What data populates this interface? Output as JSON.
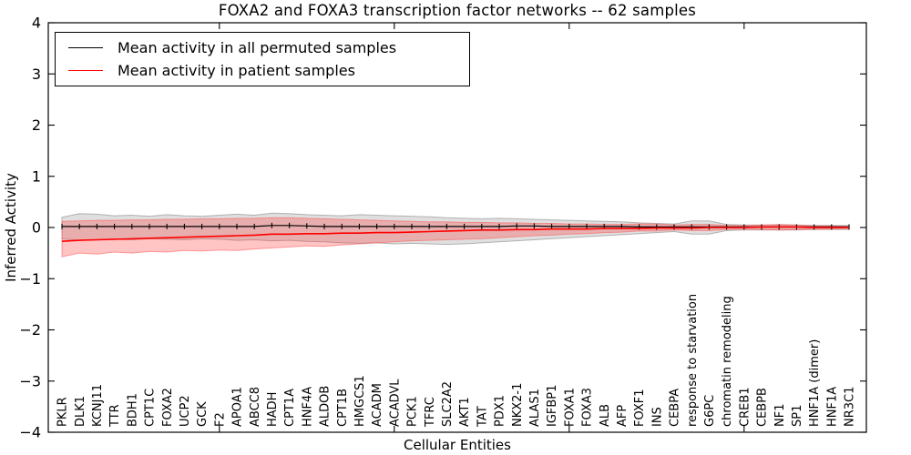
{
  "title": "FOXA2 and FOXA3 transcription factor networks -- 62 samples",
  "legend": {
    "entries": [
      {
        "label": "Mean activity in all permuted samples",
        "color": "#000000"
      },
      {
        "label": "Mean activity in patient samples",
        "color": "#ff0000"
      }
    ]
  },
  "chart_data": {
    "type": "line",
    "title": "FOXA2 and FOXA3 transcription factor networks -- 62 samples",
    "xlabel": "Cellular Entities",
    "ylabel": "Inferred Activity",
    "ylim": [
      -4,
      4
    ],
    "yticks": [
      {
        "v": 4,
        "label": "4"
      },
      {
        "v": 3,
        "label": "3"
      },
      {
        "v": 2,
        "label": "2"
      },
      {
        "v": 1,
        "label": "1"
      },
      {
        "v": 0,
        "label": "0"
      },
      {
        "v": -1,
        "label": "−1"
      },
      {
        "v": -2,
        "label": "−2"
      },
      {
        "v": -3,
        "label": "−3"
      },
      {
        "v": -4,
        "label": "−4"
      }
    ],
    "xticks_major_idx": [
      9,
      19,
      29,
      39
    ],
    "grid": false,
    "legend_position": "upper left",
    "categories": [
      "PKLR",
      "DLK1",
      "KCNJ11",
      "TTR",
      "BDH1",
      "CPT1C",
      "FOXA2",
      "UCP2",
      "GCK",
      "F2",
      "APOA1",
      "ABCC8",
      "HADH",
      "CPT1A",
      "HNF4A",
      "ALDOB",
      "CPT1B",
      "HMGCS1",
      "ACADM",
      "ACADVL",
      "PCK1",
      "TFRC",
      "SLC2A2",
      "AKT1",
      "TAT",
      "PDX1",
      "NKX2-1",
      "ALAS1",
      "IGFBP1",
      "FOXA1",
      "FOXA3",
      "ALB",
      "AFP",
      "FOXF1",
      "INS",
      "CEBPA",
      "response to starvation",
      "G6PC",
      "chromatin remodeling",
      "CREB1",
      "CEBPB",
      "NF1",
      "SP1",
      "HNF1A (dimer)",
      "HNF1A",
      "NR3C1"
    ],
    "series": [
      {
        "name": "Mean activity in all permuted samples",
        "color": "#000000",
        "band_fill": "rgba(140,140,140,0.28)",
        "band_edge": "rgba(120,120,120,0.5)",
        "values": [
          0.02,
          0.02,
          0.02,
          0.02,
          0.02,
          0.02,
          0.02,
          0.02,
          0.02,
          0.02,
          0.02,
          0.02,
          0.04,
          0.04,
          0.03,
          0.02,
          0.02,
          0.02,
          0.02,
          0.02,
          0.02,
          0.02,
          0.02,
          0.02,
          0.02,
          0.02,
          0.03,
          0.03,
          0.02,
          0.02,
          0.02,
          0.02,
          0.02,
          0.01,
          0.01,
          0.01,
          0.01,
          0.01,
          0.01,
          0.01,
          0.01,
          0.01,
          0.01,
          0.01,
          0.01,
          0.01
        ],
        "band_upper": [
          0.2,
          0.27,
          0.26,
          0.23,
          0.24,
          0.22,
          0.25,
          0.23,
          0.22,
          0.24,
          0.26,
          0.24,
          0.28,
          0.27,
          0.25,
          0.24,
          0.23,
          0.25,
          0.24,
          0.23,
          0.22,
          0.21,
          0.19,
          0.18,
          0.17,
          0.18,
          0.17,
          0.16,
          0.15,
          0.14,
          0.13,
          0.12,
          0.11,
          0.09,
          0.08,
          0.07,
          0.13,
          0.13,
          0.06,
          0.05,
          0.05,
          0.05,
          0.05,
          0.04,
          0.04,
          0.04
        ],
        "band_lower": [
          -0.22,
          -0.25,
          -0.24,
          -0.23,
          -0.24,
          -0.22,
          -0.23,
          -0.24,
          -0.22,
          -0.23,
          -0.25,
          -0.24,
          -0.26,
          -0.25,
          -0.27,
          -0.28,
          -0.3,
          -0.31,
          -0.3,
          -0.32,
          -0.31,
          -0.32,
          -0.33,
          -0.32,
          -0.3,
          -0.28,
          -0.26,
          -0.24,
          -0.22,
          -0.2,
          -0.18,
          -0.16,
          -0.14,
          -0.12,
          -0.1,
          -0.08,
          -0.13,
          -0.13,
          -0.06,
          -0.05,
          -0.05,
          -0.05,
          -0.05,
          -0.04,
          -0.04,
          -0.04
        ]
      },
      {
        "name": "Mean activity in patient samples",
        "color": "#ff0000",
        "band_fill": "rgba(255,60,60,0.30)",
        "band_edge": "rgba(255,90,90,0.55)",
        "values": [
          -0.27,
          -0.25,
          -0.24,
          -0.23,
          -0.22,
          -0.21,
          -0.2,
          -0.19,
          -0.18,
          -0.17,
          -0.16,
          -0.15,
          -0.13,
          -0.13,
          -0.12,
          -0.12,
          -0.11,
          -0.11,
          -0.1,
          -0.1,
          -0.09,
          -0.08,
          -0.07,
          -0.06,
          -0.05,
          -0.05,
          -0.04,
          -0.04,
          -0.03,
          -0.03,
          -0.03,
          -0.02,
          -0.02,
          -0.02,
          -0.01,
          -0.01,
          -0.01,
          0.0,
          0.0,
          0.0,
          0.01,
          0.01,
          0.01,
          0.0,
          0.0,
          0.0
        ],
        "band_upper": [
          0.12,
          0.13,
          0.14,
          0.14,
          0.15,
          0.15,
          0.16,
          0.16,
          0.17,
          0.17,
          0.18,
          0.18,
          0.19,
          0.19,
          0.18,
          0.17,
          0.16,
          0.15,
          0.14,
          0.13,
          0.12,
          0.11,
          0.11,
          0.1,
          0.1,
          0.09,
          0.09,
          0.08,
          0.08,
          0.07,
          0.07,
          0.06,
          0.06,
          0.07,
          0.07,
          0.05,
          0.06,
          0.06,
          0.04,
          0.04,
          0.05,
          0.06,
          0.05,
          0.03,
          0.03,
          0.02
        ],
        "band_lower": [
          -0.57,
          -0.5,
          -0.52,
          -0.48,
          -0.5,
          -0.47,
          -0.48,
          -0.45,
          -0.46,
          -0.44,
          -0.45,
          -0.42,
          -0.4,
          -0.38,
          -0.36,
          -0.37,
          -0.34,
          -0.32,
          -0.3,
          -0.28,
          -0.26,
          -0.25,
          -0.24,
          -0.23,
          -0.22,
          -0.2,
          -0.18,
          -0.16,
          -0.15,
          -0.13,
          -0.12,
          -0.1,
          -0.09,
          -0.07,
          -0.07,
          -0.05,
          -0.06,
          -0.06,
          -0.04,
          -0.03,
          -0.04,
          -0.05,
          -0.04,
          -0.03,
          -0.03,
          -0.02
        ]
      }
    ]
  }
}
